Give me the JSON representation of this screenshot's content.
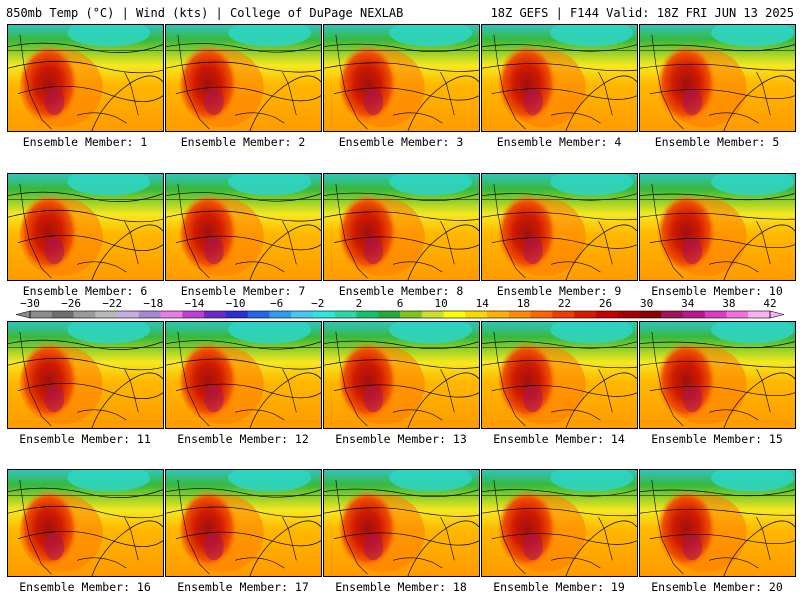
{
  "header": {
    "left": "850mb Temp (°C) | Wind (kts) | College of DuPage NEXLAB",
    "right": "18Z GEFS | F144 Valid: 18Z FRI JUN 13 2025"
  },
  "panels": [
    {
      "label": "Ensemble Member: 1"
    },
    {
      "label": "Ensemble Member: 2"
    },
    {
      "label": "Ensemble Member: 3"
    },
    {
      "label": "Ensemble Member: 4"
    },
    {
      "label": "Ensemble Member: 5"
    },
    {
      "label": "Ensemble Member: 6"
    },
    {
      "label": "Ensemble Member: 7"
    },
    {
      "label": "Ensemble Member: 8"
    },
    {
      "label": "Ensemble Member: 9"
    },
    {
      "label": "Ensemble Member: 10"
    },
    {
      "label": "Ensemble Member: 11"
    },
    {
      "label": "Ensemble Member: 12"
    },
    {
      "label": "Ensemble Member: 13"
    },
    {
      "label": "Ensemble Member: 14"
    },
    {
      "label": "Ensemble Member: 15"
    },
    {
      "label": "Ensemble Member: 16"
    },
    {
      "label": "Ensemble Member: 17"
    },
    {
      "label": "Ensemble Member: 18"
    },
    {
      "label": "Ensemble Member: 19"
    },
    {
      "label": "Ensemble Member: 20"
    }
  ],
  "colorbar": {
    "tick_labels": [
      "−30",
      "−26",
      "−22",
      "−18",
      "−14",
      "−10",
      "−6",
      "−2",
      "2",
      "6",
      "10",
      "14",
      "18",
      "22",
      "26",
      "30",
      "34",
      "38",
      "42"
    ],
    "colors": [
      "#8c8c8c",
      "#6e6e6e",
      "#9a9a9a",
      "#b8b8b8",
      "#c6aee0",
      "#a985d6",
      "#e87be6",
      "#c13ed6",
      "#6a2ad0",
      "#2c2cd8",
      "#2266ee",
      "#2f9cf0",
      "#44c6f0",
      "#2ce6e0",
      "#2ad8a6",
      "#17c06c",
      "#2aa838",
      "#7fc41e",
      "#c8e028",
      "#ffff00",
      "#ffd800",
      "#ffb200",
      "#ff8c00",
      "#ff6400",
      "#f03c00",
      "#d81a00",
      "#c80000",
      "#a80000",
      "#8c0000",
      "#a0145a",
      "#c0148c",
      "#e038c8",
      "#f070e0",
      "#ffb0f0"
    ]
  }
}
